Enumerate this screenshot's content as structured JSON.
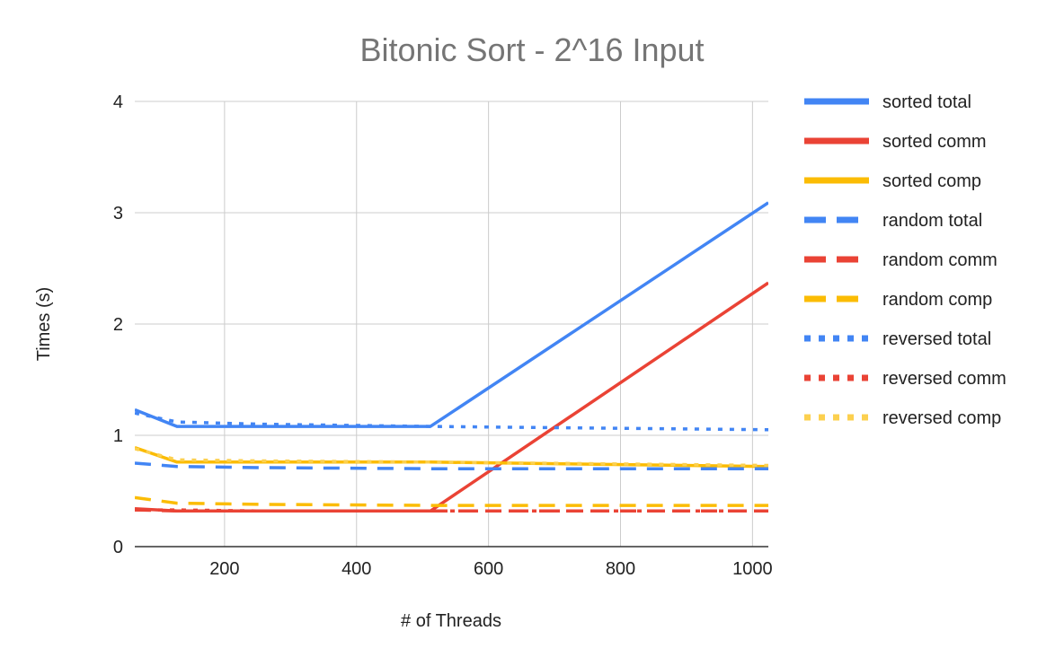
{
  "chart_data": {
    "type": "line",
    "title": "Bitonic Sort - 2^16 Input",
    "xlabel": "# of Threads",
    "ylabel": "Times (s)",
    "xlim": [
      64,
      1024
    ],
    "ylim": [
      0,
      4
    ],
    "x_ticks": [
      200,
      400,
      600,
      800,
      1000
    ],
    "y_ticks": [
      0,
      1,
      2,
      3,
      4
    ],
    "grid": true,
    "legend_position": "right",
    "x": [
      64,
      128,
      256,
      512,
      1024
    ],
    "series": [
      {
        "name": "sorted total",
        "color": "#4285F4",
        "dash": "solid",
        "values": [
          1.23,
          1.08,
          1.08,
          1.08,
          3.09
        ]
      },
      {
        "name": "sorted comm",
        "color": "#EA4335",
        "dash": "solid",
        "values": [
          0.34,
          0.32,
          0.32,
          0.32,
          2.37
        ]
      },
      {
        "name": "sorted comp",
        "color": "#FBBC04",
        "dash": "solid",
        "values": [
          0.89,
          0.76,
          0.76,
          0.76,
          0.72
        ]
      },
      {
        "name": "random total",
        "color": "#4285F4",
        "dash": "dashed",
        "values": [
          0.75,
          0.72,
          0.71,
          0.7,
          0.7
        ]
      },
      {
        "name": "random comm",
        "color": "#EA4335",
        "dash": "dashed",
        "values": [
          0.33,
          0.32,
          0.32,
          0.32,
          0.32
        ]
      },
      {
        "name": "random comp",
        "color": "#FBBC04",
        "dash": "dashed",
        "values": [
          0.44,
          0.39,
          0.38,
          0.37,
          0.37
        ]
      },
      {
        "name": "reversed total",
        "color": "#4285F4",
        "dash": "dotted",
        "values": [
          1.2,
          1.12,
          1.1,
          1.08,
          1.05
        ]
      },
      {
        "name": "reversed comm",
        "color": "#EA4335",
        "dash": "dotted",
        "values": [
          0.33,
          0.33,
          0.32,
          0.32,
          0.32
        ]
      },
      {
        "name": "reversed comp",
        "color": "#FCD04F",
        "dash": "dotted",
        "values": [
          0.88,
          0.78,
          0.77,
          0.76,
          0.73
        ]
      }
    ]
  }
}
